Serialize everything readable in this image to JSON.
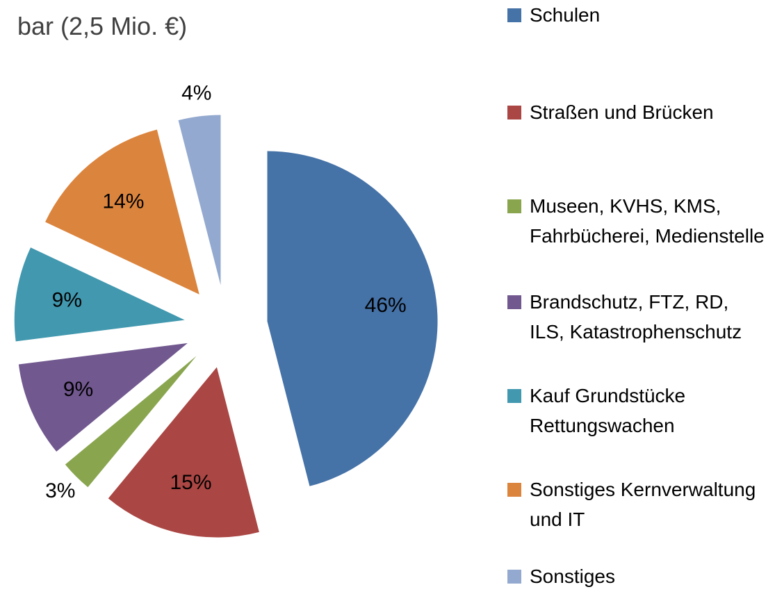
{
  "chart_data": {
    "type": "pie",
    "title": "bar (2,5 Mio. €)",
    "categories": [
      "Schulen",
      "Straßen und Brücken",
      "Museen, KVHS, KMS, Fahrbücherei, Medienstelle",
      "Brandschutz, FTZ, RD, ILS, Katastrophenschutz",
      "Kauf Grundstücke Rettungswachen",
      "Sonstiges Kernverwaltung und IT",
      "Sonstiges"
    ],
    "values": [
      46,
      15,
      3,
      9,
      9,
      14,
      4
    ],
    "value_labels": [
      "46%",
      "15%",
      "3%",
      "9%",
      "9%",
      "14%",
      "4%"
    ],
    "colors": [
      "#4572a7",
      "#aa4643",
      "#89a54e",
      "#71588f",
      "#4198af",
      "#db843d",
      "#93a9cf"
    ],
    "exploded": true,
    "legend": "right"
  }
}
